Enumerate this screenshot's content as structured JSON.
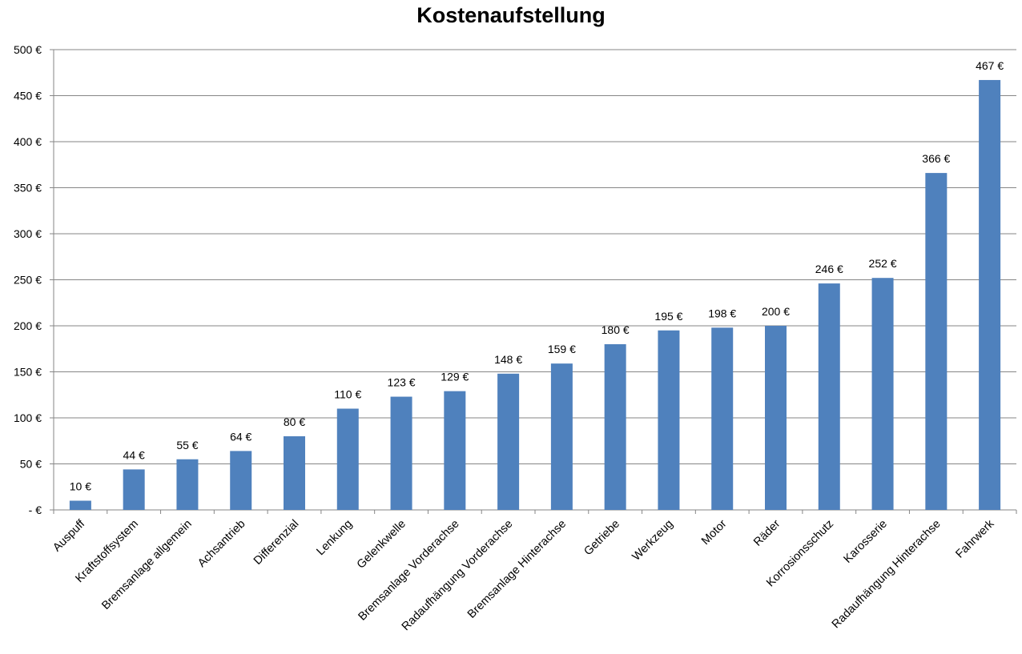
{
  "chart_data": {
    "type": "bar",
    "title": "Kostenaufstellung",
    "xlabel": "",
    "ylabel": "",
    "categories": [
      "Auspuff",
      "Kraftstoffsystem",
      "Bremsanlage allgemein",
      "Achsantrieb",
      "Differenzial",
      "Lenkung",
      "Gelenkwelle",
      "Bremsanlage Vorderachse",
      "Radaufhängung Vorderachse",
      "Bremsanlage Hinterachse",
      "Getriebe",
      "Werkzeug",
      "Motor",
      "Räder",
      "Korrosionsschutz",
      "Karosserie",
      "Radaufhängung Hinterachse",
      "Fahrwerk"
    ],
    "values": [
      10,
      44,
      55,
      64,
      80,
      110,
      123,
      129,
      148,
      159,
      180,
      195,
      198,
      200,
      246,
      252,
      366,
      467
    ],
    "data_labels": [
      "10 €",
      "44 €",
      "55 €",
      "64 €",
      "80 €",
      "110 €",
      "123 €",
      "129 €",
      "148 €",
      "159 €",
      "180 €",
      "195 €",
      "198 €",
      "200 €",
      "246 €",
      "252 €",
      "366 €",
      "467 €"
    ],
    "ylim": [
      0,
      500
    ],
    "yticks": [
      0,
      50,
      100,
      150,
      200,
      250,
      300,
      350,
      400,
      450,
      500
    ],
    "ytick_labels": [
      "-  €",
      "50 €",
      "100 €",
      "150 €",
      "200 €",
      "250 €",
      "300 €",
      "350 €",
      "400 €",
      "450 €",
      "500 €"
    ],
    "grid": true,
    "legend": "none",
    "colors": {
      "bar": "#4F81BD",
      "grid": "#868686",
      "axis": "#868686",
      "text": "#000000"
    }
  }
}
